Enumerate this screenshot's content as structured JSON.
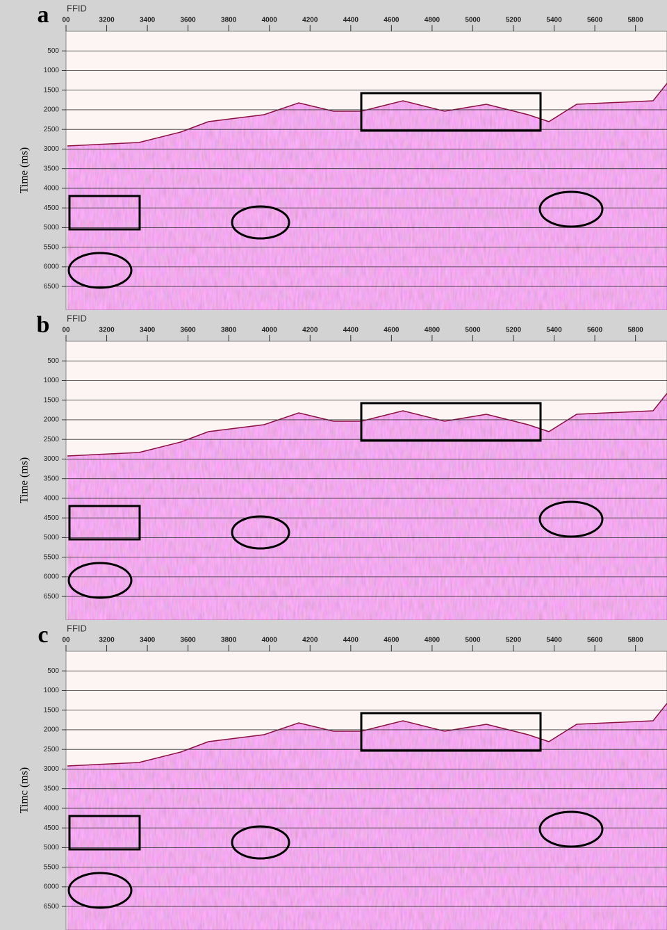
{
  "chart_data": [
    {
      "type": "seismic",
      "panel_label": "a",
      "xlabel": "FFID",
      "ylabel": "Time (ms)",
      "xlim": [
        3000,
        5955
      ],
      "xticks": [
        {
          "value": 3000,
          "label": "00"
        },
        3200,
        3400,
        3600,
        3800,
        4000,
        4200,
        4400,
        4600,
        4800,
        5000,
        5200,
        5400,
        5600,
        5800
      ],
      "ylim": [
        0,
        7100
      ],
      "y_inverted": true,
      "yticks": [
        500,
        1000,
        1500,
        2000,
        2500,
        3000,
        3500,
        4000,
        4500,
        5000,
        5500,
        6000,
        6500
      ],
      "grid": true
    },
    {
      "type": "seismic",
      "panel_label": "b",
      "xlabel": "FFID",
      "ylabel": "Time (ms)",
      "xlim": [
        3000,
        5955
      ],
      "xticks": [
        {
          "value": 3000,
          "label": "00"
        },
        3200,
        3400,
        3600,
        3800,
        4000,
        4200,
        4400,
        4600,
        4800,
        5000,
        5200,
        5400,
        5600,
        5800
      ],
      "ylim": [
        0,
        7100
      ],
      "y_inverted": true,
      "yticks": [
        500,
        1000,
        1500,
        2000,
        2500,
        3000,
        3500,
        4000,
        4500,
        5000,
        5500,
        6000,
        6500
      ],
      "grid": true
    },
    {
      "type": "seismic",
      "panel_label": "c",
      "xlabel": "FFID",
      "ylabel": "Timc (ms)",
      "xlim": [
        3000,
        5955
      ],
      "xticks": [
        {
          "value": 3000,
          "label": "00"
        },
        3200,
        3400,
        3600,
        3800,
        4000,
        4200,
        4400,
        4600,
        4800,
        5000,
        5200,
        5400,
        5600,
        5800
      ],
      "ylim": [
        0,
        7100
      ],
      "y_inverted": true,
      "yticks": [
        500,
        1000,
        1500,
        2000,
        2500,
        3000,
        3500,
        4000,
        4500,
        5000,
        5500,
        6000,
        6500
      ],
      "grid": true
    }
  ]
}
